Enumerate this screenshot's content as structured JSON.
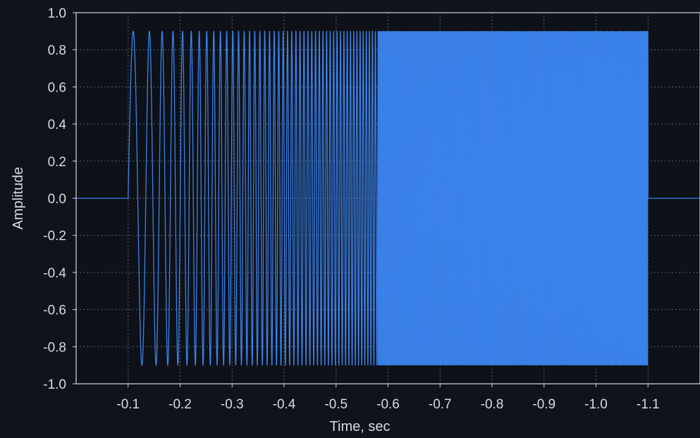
{
  "chart_data": {
    "type": "line",
    "title": "",
    "xlabel": "Time, sec",
    "ylabel": "Amplitude",
    "x_ticks": [
      "-0.1",
      "-0.2",
      "-0.3",
      "-0.4",
      "-0.5",
      "-0.6",
      "-0.7",
      "-0.8",
      "-0.9",
      "-1.0",
      "-1.1"
    ],
    "y_ticks": [
      "1.0",
      "0.8",
      "0.6",
      "0.4",
      "0.2",
      "0.0",
      "-0.2",
      "-0.4",
      "-0.6",
      "-0.8",
      "-1.0"
    ],
    "xlim": [
      0,
      -1.2
    ],
    "ylim": [
      -1.0,
      1.0
    ],
    "grid": true,
    "signal": {
      "description_type": "chirp",
      "start_time": -0.1,
      "end_time": -1.1,
      "amplitude": 0.9,
      "baseline": 0.0,
      "start_freq_hz": 24,
      "chirp_rate": 110
    },
    "colors": {
      "background": "#10131a",
      "plot_area": "#0e1117",
      "axis": "#cfd6e2",
      "grid": "#5c6472",
      "signal": "#3a82ea",
      "text": "#d5dbe5"
    }
  }
}
